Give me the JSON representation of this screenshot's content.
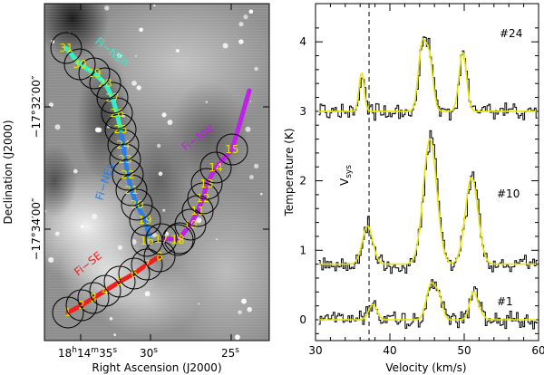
{
  "chart_data": [
    {
      "type": "image",
      "title": "",
      "xlabel": "Right Ascension (J2000)",
      "ylabel": "Declination (J2000)",
      "x_ticks": [
        {
          "h": "18",
          "m": "14",
          "s": "35"
        },
        {
          "s": "30"
        },
        {
          "s": "25"
        }
      ],
      "y_ticks": [
        {
          "text": "−17°32′00″"
        },
        {
          "text": "−17°34′00″"
        }
      ],
      "filaments": [
        {
          "name": "Fi−NEn",
          "color": "#2ff0c8"
        },
        {
          "name": "Fi−NEs",
          "color": "#2a7ee6"
        },
        {
          "name": "Fi−NW",
          "color": "#c020e8"
        },
        {
          "name": "Fi−SE",
          "color": "#f01e1e"
        }
      ],
      "circle_labels": [
        "1",
        "2",
        "3",
        "4",
        "5",
        "6",
        "7",
        "8",
        "9",
        "10",
        "11",
        "12",
        "13",
        "14",
        "15",
        "16",
        "17",
        "18",
        "19",
        "20",
        "21",
        "22",
        "23",
        "24",
        "25",
        "26",
        "27",
        "28",
        "29",
        "30",
        "31"
      ]
    },
    {
      "type": "line",
      "xlabel": "Velocity (km/s)",
      "ylabel": "Temperature (K)",
      "xlim": [
        30,
        60
      ],
      "ylim": [
        -0.3,
        4.55
      ],
      "x_ticks": [
        "30",
        "40",
        "50",
        "60"
      ],
      "y_ticks": [
        "0",
        "1",
        "2",
        "3",
        "4"
      ],
      "vsys": {
        "value": 37.2,
        "label": "V",
        "subscript": "sys"
      },
      "series": [
        {
          "name": "#1",
          "offset": 0.0,
          "components": [
            {
              "v": 37.7,
              "a": 0.22,
              "s": 0.55
            },
            {
              "v": 45.5,
              "a": 0.5,
              "s": 0.6
            },
            {
              "v": 46.6,
              "a": 0.3,
              "s": 0.5
            },
            {
              "v": 51.2,
              "a": 0.38,
              "s": 0.5
            },
            {
              "v": 52.1,
              "a": 0.1,
              "s": 0.5
            }
          ]
        },
        {
          "name": "#10",
          "offset": 0.8,
          "components": [
            {
              "v": 37.0,
              "a": 0.55,
              "s": 0.7
            },
            {
              "v": 45.4,
              "a": 1.8,
              "s": 0.9
            },
            {
              "v": 51.0,
              "a": 1.25,
              "s": 0.85
            }
          ]
        },
        {
          "name": "#24",
          "offset": 3.0,
          "components": [
            {
              "v": 36.2,
              "a": 0.55,
              "s": 0.35
            },
            {
              "v": 44.3,
              "a": 0.9,
              "s": 0.5
            },
            {
              "v": 45.3,
              "a": 0.75,
              "s": 0.5
            },
            {
              "v": 49.8,
              "a": 0.85,
              "s": 0.5
            }
          ]
        }
      ],
      "colors": {
        "observed": "#000000",
        "fit": "#e8e800"
      }
    }
  ]
}
